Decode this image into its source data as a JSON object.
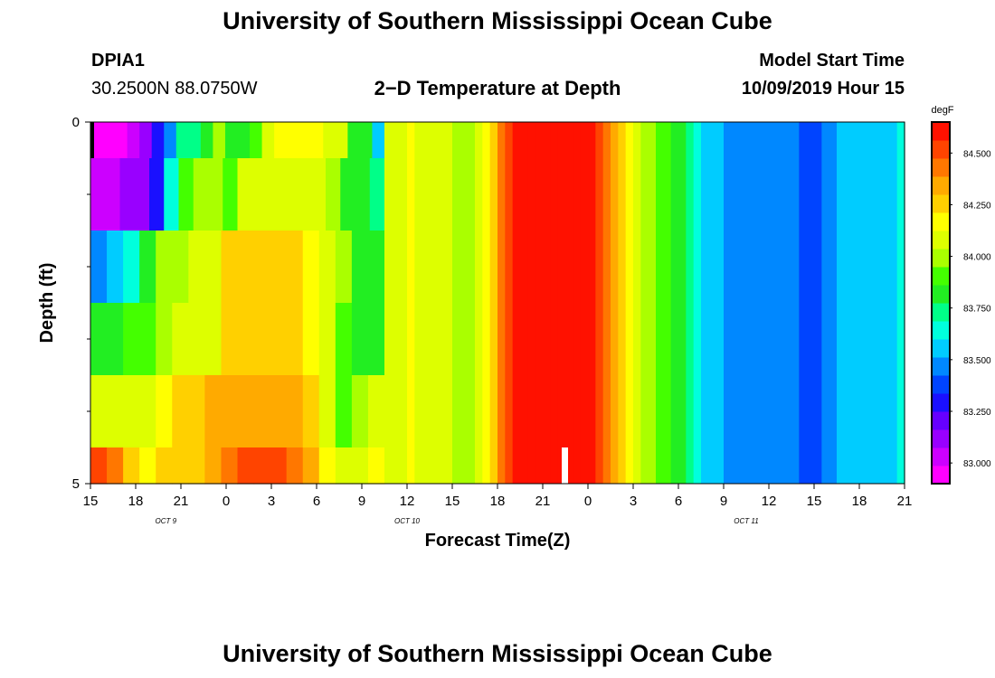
{
  "page": {
    "title_top": "University of Southern Mississippi Ocean Cube",
    "title_bottom": "University of Southern Mississippi Ocean Cube",
    "station_id": "DPIA1",
    "station_coords": "30.2500N 88.0750W",
    "model_start_label": "Model Start Time",
    "model_start_value": "10/09/2019 Hour 15"
  },
  "colors": {
    "scale": [
      "#ff00ff",
      "#cc00ff",
      "#9900ff",
      "#6600ff",
      "#1a10ff",
      "#0044ff",
      "#0088ff",
      "#00ccff",
      "#00ffdd",
      "#00ff88",
      "#22ee22",
      "#44ff00",
      "#aaff00",
      "#ddff00",
      "#ffff00",
      "#ffd000",
      "#ffaa00",
      "#ff7700",
      "#ff4400",
      "#ff1100"
    ],
    "marker": "#ffffff",
    "black": "#000000"
  },
  "chart_data": {
    "type": "heatmap",
    "title": "2−D Temperature at Depth",
    "xlabel": "Forecast Time(Z)",
    "ylabel": "Depth (ft)",
    "x_start_hour": 15,
    "x_end_hour": 69,
    "x_ticks": [
      {
        "hour": 15,
        "label": "15"
      },
      {
        "hour": 18,
        "label": "18"
      },
      {
        "hour": 21,
        "label": "21"
      },
      {
        "hour": 24,
        "label": "0"
      },
      {
        "hour": 27,
        "label": "3"
      },
      {
        "hour": 30,
        "label": "6"
      },
      {
        "hour": 33,
        "label": "9"
      },
      {
        "hour": 36,
        "label": "12"
      },
      {
        "hour": 39,
        "label": "15"
      },
      {
        "hour": 42,
        "label": "18"
      },
      {
        "hour": 45,
        "label": "21"
      },
      {
        "hour": 48,
        "label": "0"
      },
      {
        "hour": 51,
        "label": "3"
      },
      {
        "hour": 54,
        "label": "6"
      },
      {
        "hour": 57,
        "label": "9"
      },
      {
        "hour": 60,
        "label": "12"
      },
      {
        "hour": 63,
        "label": "15"
      },
      {
        "hour": 66,
        "label": "18"
      },
      {
        "hour": 69,
        "label": "21"
      }
    ],
    "date_labels": [
      {
        "hour": 20,
        "label": "OCT 9"
      },
      {
        "hour": 36,
        "label": "OCT 10"
      },
      {
        "hour": 58.5,
        "label": "OCT 11"
      }
    ],
    "y_range": [
      0,
      5
    ],
    "y_tick_labels": [
      {
        "value": 0,
        "label": "0"
      },
      {
        "value": 5,
        "label": "5"
      }
    ],
    "y_minor_ticks": [
      1,
      2,
      3,
      4
    ],
    "colorbar": {
      "unit": "degF",
      "min": 82.9,
      "max": 84.65,
      "ticks": [
        "84.500",
        "84.250",
        "84.000",
        "83.750",
        "83.500",
        "83.250",
        "83.000"
      ],
      "tick_values": [
        84.5,
        84.25,
        84.0,
        83.75,
        83.5,
        83.25,
        83.0
      ]
    },
    "layer_depths": [
      [
        0,
        0.5
      ],
      [
        0.5,
        1.5
      ],
      [
        1.5,
        2.5
      ],
      [
        2.5,
        3.5
      ],
      [
        3.5,
        4.5
      ],
      [
        4.5,
        5
      ]
    ],
    "layer_columns_end_hour": 34.5,
    "layers": [
      [
        82.93,
        82.95,
        82.98,
        83.02,
        83.12,
        83.3,
        83.5,
        83.7,
        83.75,
        83.85,
        83.97,
        83.85,
        83.78,
        83.93,
        84.05,
        84.15,
        84.15,
        84.15,
        84.15,
        84.12,
        84.05,
        83.85,
        83.78,
        83.6
      ],
      [
        83.05,
        83.05,
        83.08,
        83.12,
        83.3,
        83.65,
        83.88,
        83.97,
        83.97,
        83.93,
        84.12,
        84.12,
        84.12,
        84.12,
        84.12,
        84.1,
        83.97,
        83.85,
        83.8,
        83.75
      ],
      [
        83.45,
        83.55,
        83.65,
        83.78,
        84.0,
        84.02,
        84.05,
        84.05,
        84.22,
        84.22,
        84.22,
        84.22,
        84.25,
        84.2,
        84.1,
        83.97,
        83.85,
        83.8
      ],
      [
        83.78,
        83.78,
        83.88,
        83.93,
        84.02,
        84.05,
        84.12,
        84.12,
        84.28,
        84.28,
        84.28,
        84.28,
        84.3,
        84.18,
        84.05,
        83.95,
        83.85,
        83.85
      ],
      [
        84.08,
        84.12,
        84.08,
        84.12,
        84.15,
        84.22,
        84.28,
        84.35,
        84.38,
        84.38,
        84.38,
        84.38,
        84.35,
        84.22,
        84.05,
        83.95,
        84.0,
        84.05
      ],
      [
        84.5,
        84.45,
        84.22,
        84.2,
        84.22,
        84.28,
        84.3,
        84.35,
        84.45,
        84.48,
        84.48,
        84.48,
        84.45,
        84.35,
        84.2,
        84.05,
        84.1,
        84.2
      ]
    ],
    "full_depth_start_hour": 34.5,
    "full_depth_step_hours": 0.5,
    "full_depth_values": [
      84.05,
      84.1,
      84.12,
      84.15,
      84.12,
      84.1,
      84.1,
      84.08,
      84.05,
      84.02,
      83.98,
      84.02,
      84.1,
      84.2,
      84.3,
      84.42,
      84.5,
      84.58,
      84.6,
      84.62,
      84.63,
      84.63,
      84.63,
      84.63,
      84.63,
      84.63,
      84.62,
      84.6,
      84.55,
      84.45,
      84.35,
      84.25,
      84.15,
      84.08,
      84.02,
      83.97,
      83.92,
      83.88,
      83.82,
      83.78,
      83.72,
      83.66,
      83.6,
      83.56,
      83.53,
      83.5,
      83.48,
      83.46,
      83.45,
      83.45,
      83.44,
      83.44,
      83.43,
      83.43,
      83.43,
      83.42,
      83.41,
      83.42,
      83.44,
      83.5,
      83.52,
      83.54,
      83.56,
      83.56,
      83.58,
      83.58,
      83.6,
      83.6,
      83.62,
      83.62
    ],
    "marker": {
      "hour": 46.5,
      "from_depth": 4.5,
      "to_depth": 5
    },
    "black_marker": {
      "hour": 15,
      "from_depth": 0,
      "to_depth": 0.5
    }
  }
}
